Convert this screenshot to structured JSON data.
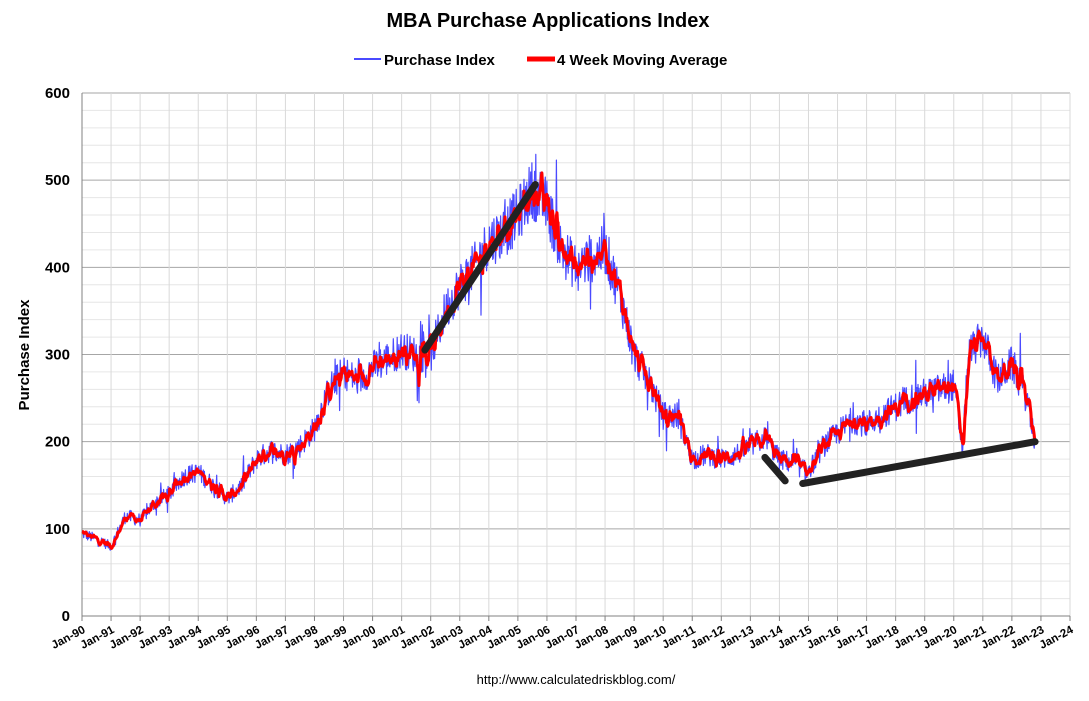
{
  "chart_data": {
    "type": "line",
    "title": "MBA Purchase Applications Index",
    "xlabel": "",
    "ylabel": "Purchase Index",
    "source_note": "http://www.calculatedriskblog.com/",
    "ylim": [
      0,
      600
    ],
    "yticks": [
      0,
      100,
      200,
      300,
      400,
      500,
      600
    ],
    "xlim": [
      1990,
      2024
    ],
    "xticks": [
      {
        "x": 1990,
        "label": "Jan-90"
      },
      {
        "x": 1991,
        "label": "Jan-91"
      },
      {
        "x": 1992,
        "label": "Jan-92"
      },
      {
        "x": 1993,
        "label": "Jan-93"
      },
      {
        "x": 1994,
        "label": "Jan-94"
      },
      {
        "x": 1995,
        "label": "Jan-95"
      },
      {
        "x": 1996,
        "label": "Jan-96"
      },
      {
        "x": 1997,
        "label": "Jan-97"
      },
      {
        "x": 1998,
        "label": "Jan-98"
      },
      {
        "x": 1999,
        "label": "Jan-99"
      },
      {
        "x": 2000,
        "label": "Jan-00"
      },
      {
        "x": 2001,
        "label": "Jan-01"
      },
      {
        "x": 2002,
        "label": "Jan-02"
      },
      {
        "x": 2003,
        "label": "Jan-03"
      },
      {
        "x": 2004,
        "label": "Jan-04"
      },
      {
        "x": 2005,
        "label": "Jan-05"
      },
      {
        "x": 2006,
        "label": "Jan-06"
      },
      {
        "x": 2007,
        "label": "Jan-07"
      },
      {
        "x": 2008,
        "label": "Jan-08"
      },
      {
        "x": 2009,
        "label": "Jan-09"
      },
      {
        "x": 2010,
        "label": "Jan-10"
      },
      {
        "x": 2011,
        "label": "Jan-11"
      },
      {
        "x": 2012,
        "label": "Jan-12"
      },
      {
        "x": 2013,
        "label": "Jan-13"
      },
      {
        "x": 2014,
        "label": "Jan-14"
      },
      {
        "x": 2015,
        "label": "Jan-15"
      },
      {
        "x": 2016,
        "label": "Jan-16"
      },
      {
        "x": 2017,
        "label": "Jan-17"
      },
      {
        "x": 2018,
        "label": "Jan-18"
      },
      {
        "x": 2019,
        "label": "Jan-19"
      },
      {
        "x": 2020,
        "label": "Jan-20"
      },
      {
        "x": 2021,
        "label": "Jan-21"
      },
      {
        "x": 2022,
        "label": "Jan-22"
      },
      {
        "x": 2023,
        "label": "Jan-23"
      },
      {
        "x": 2024,
        "label": "Jan-24"
      }
    ],
    "grid": true,
    "legend_position": "top-center",
    "series": [
      {
        "name": "Purchase Index",
        "color": "#4a4aff",
        "x": [
          1990.0,
          1990.5,
          1991.0,
          1991.5,
          1992.0,
          1992.5,
          1993.0,
          1993.5,
          1994.0,
          1994.5,
          1995.0,
          1995.5,
          1996.0,
          1996.5,
          1997.0,
          1997.5,
          1998.0,
          1998.5,
          1999.0,
          1999.5,
          2000.0,
          2000.5,
          2001.0,
          2001.5,
          2002.0,
          2002.5,
          2003.0,
          2003.5,
          2004.0,
          2004.5,
          2005.0,
          2005.5,
          2006.0,
          2006.5,
          2007.0,
          2007.5,
          2008.0,
          2008.5,
          2009.0,
          2009.5,
          2010.0,
          2010.5,
          2011.0,
          2011.5,
          2012.0,
          2012.5,
          2013.0,
          2013.5,
          2014.0,
          2014.5,
          2015.0,
          2015.5,
          2016.0,
          2016.5,
          2017.0,
          2017.5,
          2018.0,
          2018.5,
          2019.0,
          2019.5,
          2020.0,
          2020.3,
          2020.5,
          2021.0,
          2021.5,
          2022.0,
          2022.5,
          2022.8
        ],
        "values": [
          95,
          88,
          80,
          115,
          110,
          130,
          140,
          160,
          165,
          150,
          135,
          150,
          180,
          190,
          185,
          195,
          215,
          260,
          280,
          270,
          285,
          295,
          305,
          300,
          300,
          350,
          380,
          400,
          430,
          440,
          460,
          490,
          470,
          420,
          400,
          410,
          420,
          370,
          300,
          270,
          230,
          230,
          180,
          185,
          180,
          185,
          195,
          205,
          180,
          175,
          165,
          195,
          210,
          225,
          220,
          230,
          240,
          250,
          255,
          260,
          265,
          190,
          300,
          320,
          270,
          290,
          250,
          200
        ]
      },
      {
        "name": "4 Week Moving Average",
        "color": "#ff0000",
        "x": [
          1990.0,
          1990.5,
          1991.0,
          1991.5,
          1992.0,
          1992.5,
          1993.0,
          1993.5,
          1994.0,
          1994.5,
          1995.0,
          1995.5,
          1996.0,
          1996.5,
          1997.0,
          1997.5,
          1998.0,
          1998.5,
          1999.0,
          1999.5,
          2000.0,
          2000.5,
          2001.0,
          2001.5,
          2002.0,
          2002.5,
          2003.0,
          2003.5,
          2004.0,
          2004.5,
          2005.0,
          2005.5,
          2006.0,
          2006.5,
          2007.0,
          2007.5,
          2008.0,
          2008.5,
          2009.0,
          2009.5,
          2010.0,
          2010.5,
          2011.0,
          2011.5,
          2012.0,
          2012.5,
          2013.0,
          2013.5,
          2014.0,
          2014.5,
          2015.0,
          2015.5,
          2016.0,
          2016.5,
          2017.0,
          2017.5,
          2018.0,
          2018.5,
          2019.0,
          2019.5,
          2020.0,
          2020.3,
          2020.5,
          2021.0,
          2021.5,
          2022.0,
          2022.5,
          2022.8
        ],
        "values": [
          95,
          88,
          80,
          115,
          110,
          130,
          140,
          160,
          165,
          150,
          135,
          150,
          180,
          190,
          185,
          195,
          215,
          260,
          280,
          270,
          285,
          295,
          305,
          300,
          300,
          350,
          380,
          400,
          430,
          440,
          460,
          490,
          470,
          420,
          400,
          410,
          420,
          370,
          300,
          270,
          230,
          230,
          180,
          185,
          180,
          185,
          195,
          205,
          180,
          175,
          165,
          195,
          210,
          225,
          220,
          230,
          240,
          250,
          255,
          260,
          265,
          190,
          300,
          320,
          270,
          290,
          250,
          200
        ]
      }
    ],
    "annotation_lines": [
      {
        "name": "trend-2002-2005",
        "color": "#222222",
        "points": [
          [
            2001.8,
            305
          ],
          [
            2005.6,
            495
          ]
        ]
      },
      {
        "name": "trend-2013-2014",
        "color": "#222222",
        "points": [
          [
            2013.5,
            182
          ],
          [
            2014.2,
            155
          ]
        ]
      },
      {
        "name": "trend-2015-2023",
        "color": "#222222",
        "points": [
          [
            2014.8,
            152
          ],
          [
            2022.8,
            200
          ]
        ]
      }
    ]
  }
}
